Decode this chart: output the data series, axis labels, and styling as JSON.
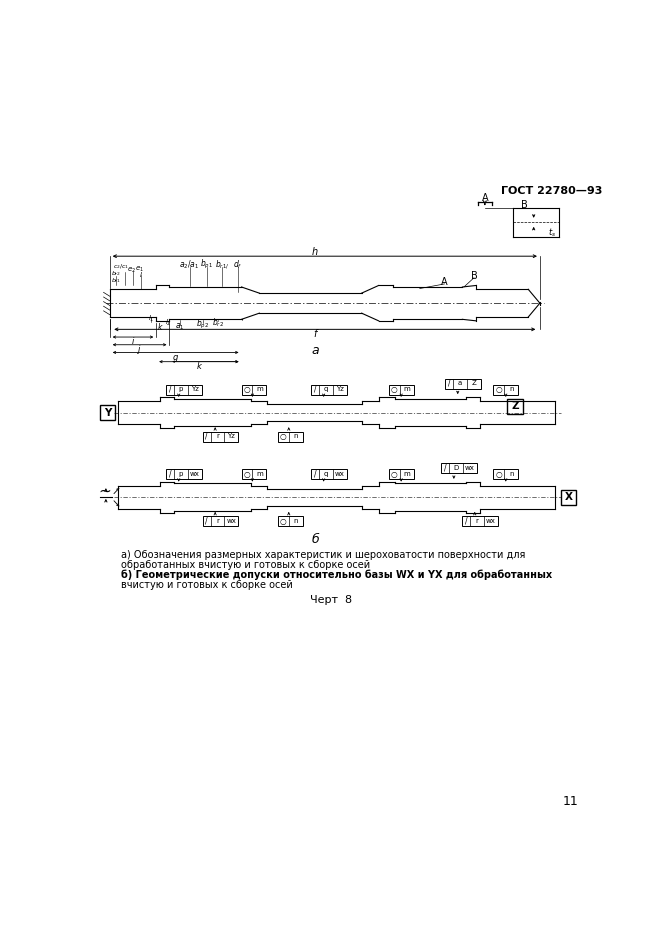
{
  "title": "ГОСТ 22780—93",
  "page_number": "11",
  "background_color": "#ffffff",
  "line_color": "#000000",
  "fig_width": 6.61,
  "fig_height": 9.35,
  "dpi": 100,
  "caption_a": "а) Обозначения размерных характеристик и шероховатости поверхности для",
  "caption_a2": "обработанных вчистую и готовых к сборке осей",
  "caption_b": "б) Геометрические допуски относительно базы WX и YX для обработанных",
  "caption_b2": "вчистую и готовых к сборке осей",
  "chart_label": "Черт  8",
  "label_a": "а",
  "label_b": "б"
}
